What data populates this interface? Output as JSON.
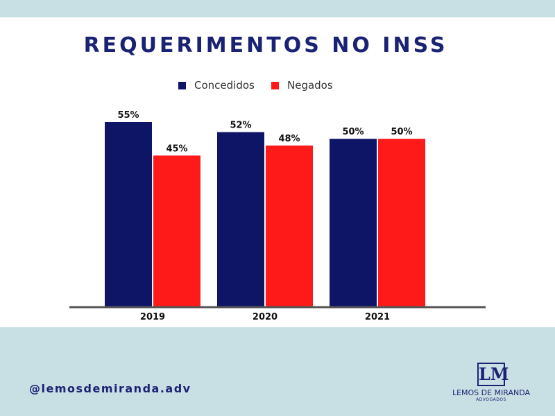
{
  "colors": {
    "concedidos": "#0f1566",
    "negados": "#ff1a1a",
    "axis": "#555555"
  },
  "branding": {
    "handle": "@lemosdemiranda.adv",
    "logo_mark": "LM",
    "logo_name": "LEMOS DE MIRANDA",
    "logo_sub": "ADVOGADOS"
  },
  "chart_data": {
    "type": "bar",
    "title": "REQUERIMENTOS NO INSS",
    "categories": [
      "2019",
      "2020",
      "2021"
    ],
    "series": [
      {
        "name": "Concedidos",
        "values": [
          55,
          52,
          50
        ],
        "labels": [
          "55%",
          "52%",
          "50%"
        ]
      },
      {
        "name": "Negados",
        "values": [
          45,
          48,
          50
        ],
        "labels": [
          "45%",
          "48%",
          "50%"
        ]
      }
    ],
    "xlabel": "",
    "ylabel": "",
    "ylim": [
      0,
      55
    ],
    "grid": false,
    "legend": "top-center"
  }
}
